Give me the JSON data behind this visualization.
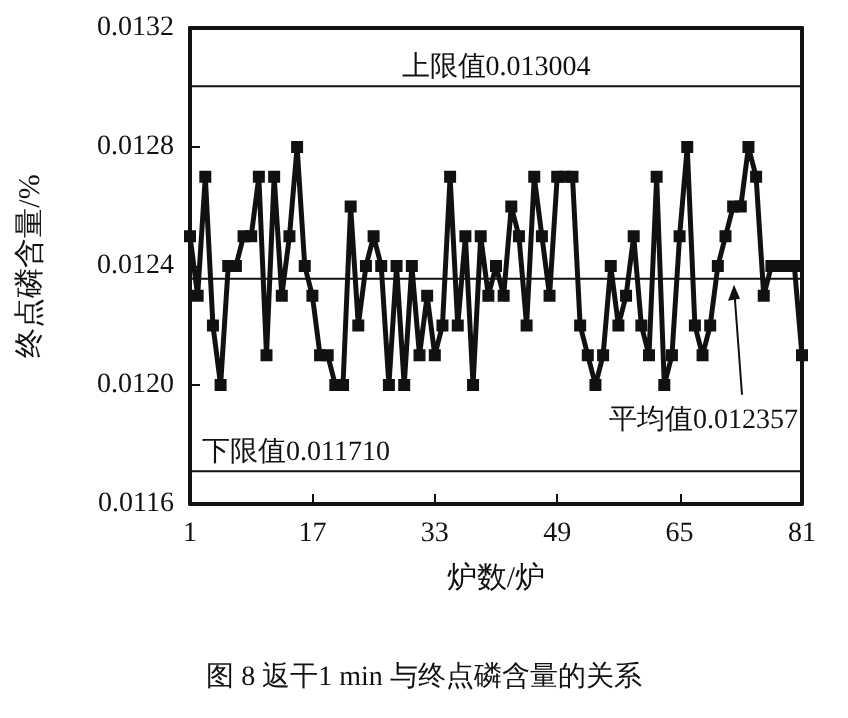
{
  "chart_data": {
    "type": "line",
    "title": "图 8 返干1 min 与终点磷含量的关系",
    "xlabel": "炉数/炉",
    "ylabel": "终点磷含量/%",
    "x": [
      1,
      2,
      3,
      4,
      5,
      6,
      7,
      8,
      9,
      10,
      11,
      12,
      13,
      14,
      15,
      16,
      17,
      18,
      19,
      20,
      21,
      22,
      23,
      24,
      25,
      26,
      27,
      28,
      29,
      30,
      31,
      32,
      33,
      34,
      35,
      36,
      37,
      38,
      39,
      40,
      41,
      42,
      43,
      44,
      45,
      46,
      47,
      48,
      49,
      50,
      51,
      52,
      53,
      54,
      55,
      56,
      57,
      58,
      59,
      60,
      61,
      62,
      63,
      64,
      65,
      66,
      67,
      68,
      69,
      70,
      71,
      72,
      73,
      74,
      75,
      76,
      77,
      78,
      79,
      80,
      81
    ],
    "series": [
      {
        "color": "#111111",
        "values": [
          0.0125,
          0.0123,
          0.0127,
          0.0122,
          0.012,
          0.0124,
          0.0124,
          0.0125,
          0.0125,
          0.0127,
          0.0121,
          0.0127,
          0.0123,
          0.0125,
          0.0128,
          0.0124,
          0.0123,
          0.0121,
          0.0121,
          0.012,
          0.012,
          0.0126,
          0.0122,
          0.0124,
          0.0125,
          0.0124,
          0.012,
          0.0124,
          0.012,
          0.0124,
          0.0121,
          0.0123,
          0.0121,
          0.0122,
          0.0127,
          0.0122,
          0.0125,
          0.012,
          0.0125,
          0.0123,
          0.0124,
          0.0123,
          0.0126,
          0.0125,
          0.0122,
          0.0127,
          0.0125,
          0.0123,
          0.0127,
          0.0127,
          0.0127,
          0.0122,
          0.0121,
          0.012,
          0.0121,
          0.0124,
          0.0122,
          0.0123,
          0.0125,
          0.0122,
          0.0121,
          0.0127,
          0.012,
          0.0121,
          0.0125,
          0.0128,
          0.0122,
          0.0121,
          0.0122,
          0.0124,
          0.0125,
          0.0126,
          0.0126,
          0.0128,
          0.0127,
          0.0123,
          0.0124,
          0.0124,
          0.0124,
          0.0124,
          0.0121
        ]
      }
    ],
    "xlim": [
      1,
      81
    ],
    "xticks": [
      1,
      17,
      33,
      49,
      65,
      81
    ],
    "ylim": [
      0.0116,
      0.0132
    ],
    "yticks": [
      0.0116,
      {
        "value": 0.012,
        "label": "0.0120"
      },
      0.0124,
      0.0128,
      0.0132
    ],
    "ref_lines": [
      {
        "axis": "y",
        "value": 0.013004,
        "label": "上限值0.013004"
      },
      {
        "axis": "y",
        "value": 0.012357,
        "label": "平均值0.012357"
      },
      {
        "axis": "y",
        "value": 0.01171,
        "label": "下限值0.011710"
      }
    ],
    "marker": "square",
    "line_style": "solid"
  }
}
